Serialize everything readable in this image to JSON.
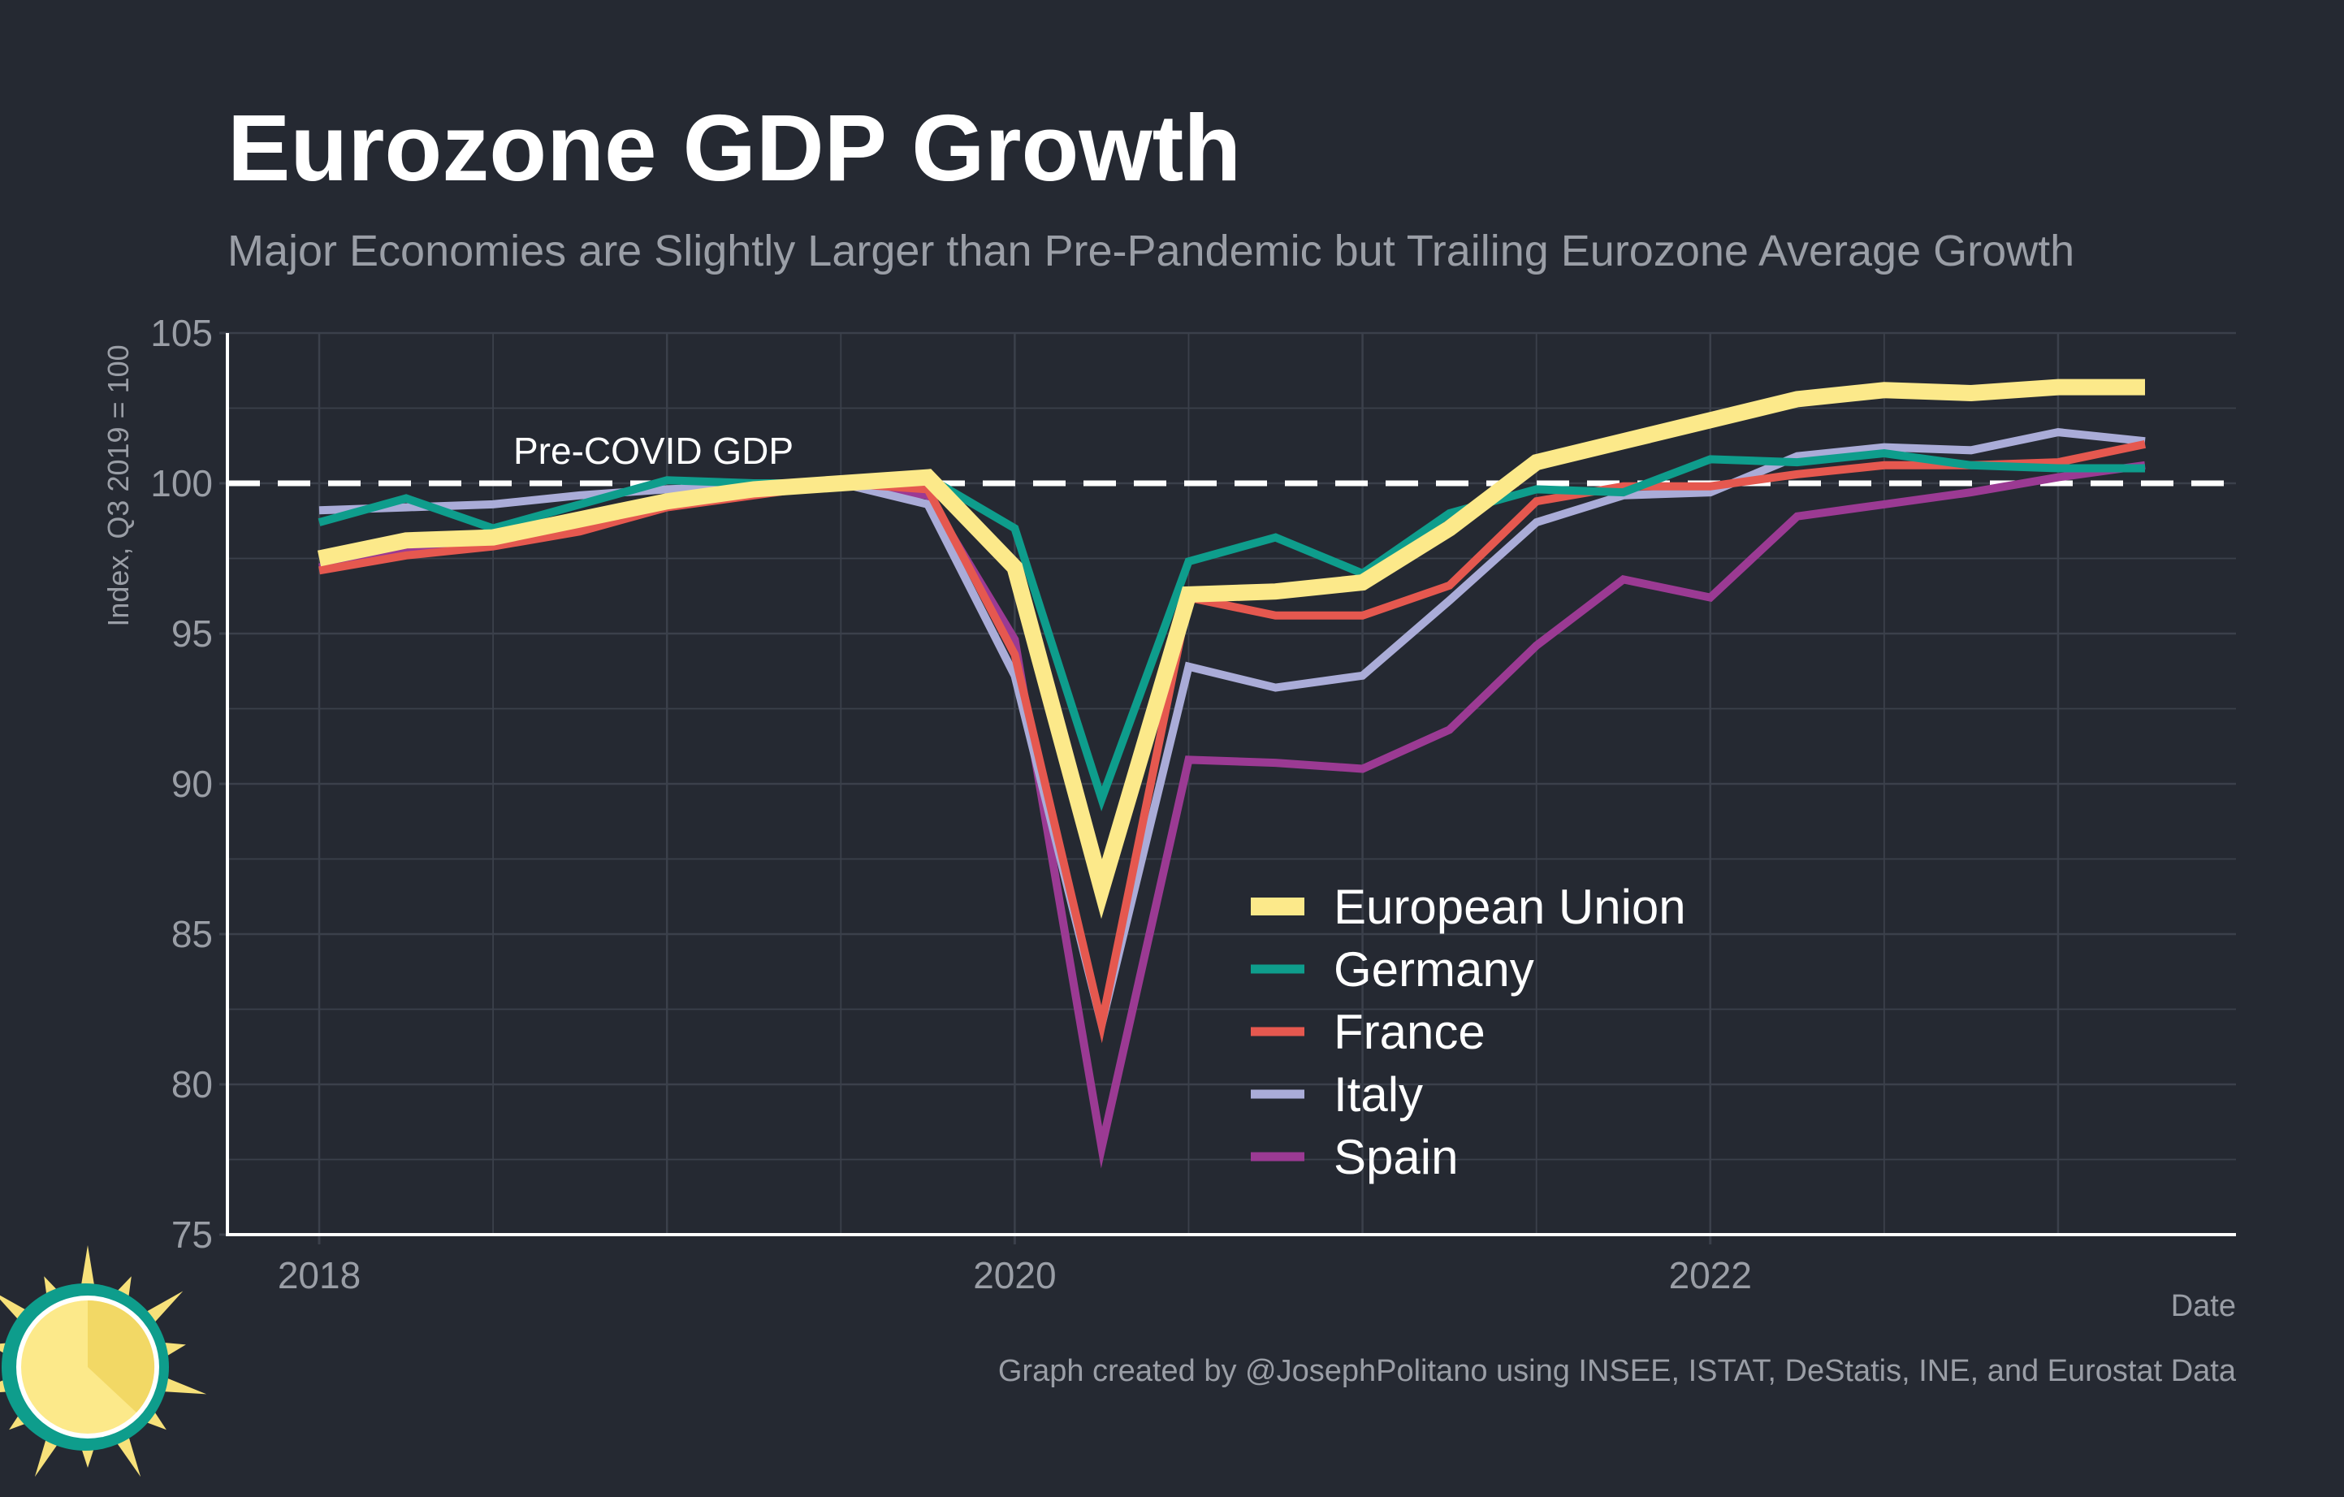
{
  "colors": {
    "background": "#252932",
    "grid": "#3b404b",
    "axis": "#ffffff",
    "tick_text": "#9a9ea6",
    "title": "#ffffff",
    "subtitle": "#9a9ea6",
    "reference": "#ffffff",
    "logo_teal": "#0e9d8c",
    "logo_yellow": "#f7e17a"
  },
  "chart_data": {
    "type": "line",
    "title": "Eurozone GDP Growth",
    "subtitle": "Major Economies are Slightly Larger than Pre-Pandemic but Trailing Eurozone Average Growth",
    "xlabel": "Date",
    "ylabel": "Index, Q3 2019 = 100",
    "caption": "Graph created by @JosephPolitano using INSEE, ISTAT, DeStatis, INE, and Eurostat Data",
    "x": [
      "2018-Q1",
      "2018-Q2",
      "2018-Q3",
      "2018-Q4",
      "2019-Q1",
      "2019-Q2",
      "2019-Q3",
      "2019-Q4",
      "2020-Q1",
      "2020-Q2",
      "2020-Q3",
      "2020-Q4",
      "2021-Q1",
      "2021-Q2",
      "2021-Q3",
      "2021-Q4",
      "2022-Q1",
      "2022-Q2",
      "2022-Q3",
      "2022-Q4",
      "2023-Q1",
      "2023-Q2"
    ],
    "x_ticks": [
      {
        "label": "2018",
        "index": 0
      },
      {
        "label": "2020",
        "index": 8
      },
      {
        "label": "2022",
        "index": 16
      }
    ],
    "ylim": [
      75,
      105
    ],
    "y_ticks": [
      75,
      80,
      85,
      90,
      95,
      100,
      105
    ],
    "grid": true,
    "legend_position": "center-bottom",
    "reference_line": {
      "y": 100,
      "label": "Pre-COVID GDP",
      "style": "dashed"
    },
    "series": [
      {
        "name": "Spain",
        "color": "#9b3a93",
        "values": [
          97.2,
          97.7,
          98.2,
          98.8,
          99.4,
          99.8,
          100.0,
          99.6,
          94.8,
          77.9,
          90.8,
          90.7,
          90.5,
          91.8,
          94.6,
          96.8,
          96.2,
          98.9,
          99.3,
          99.7,
          100.2,
          100.6
        ]
      },
      {
        "name": "Italy",
        "color": "#aaacd8",
        "values": [
          99.1,
          99.2,
          99.3,
          99.6,
          99.8,
          99.9,
          100.0,
          99.3,
          93.6,
          82.0,
          93.9,
          93.2,
          93.6,
          96.1,
          98.7,
          99.6,
          99.7,
          100.9,
          101.2,
          101.1,
          101.7,
          101.4
        ]
      },
      {
        "name": "France",
        "color": "#e5584f",
        "values": [
          97.1,
          97.6,
          97.9,
          98.4,
          99.2,
          99.6,
          100.0,
          99.8,
          94.3,
          82.0,
          96.2,
          95.6,
          95.6,
          96.6,
          99.4,
          99.9,
          99.9,
          100.3,
          100.6,
          100.6,
          100.7,
          101.3
        ]
      },
      {
        "name": "Germany",
        "color": "#0e9d8c",
        "values": [
          98.7,
          99.5,
          98.5,
          99.3,
          100.1,
          100.0,
          100.0,
          100.2,
          98.5,
          89.5,
          97.4,
          98.2,
          97.0,
          99.0,
          99.8,
          99.7,
          100.8,
          100.7,
          101.0,
          100.6,
          100.5,
          100.5
        ]
      },
      {
        "name": "European Union",
        "color": "#fce98a",
        "values": [
          97.5,
          98.1,
          98.2,
          98.8,
          99.4,
          99.8,
          100.0,
          100.2,
          97.2,
          86.5,
          96.3,
          96.4,
          96.7,
          98.5,
          100.7,
          101.4,
          102.1,
          102.8,
          103.1,
          103.0,
          103.2,
          103.2
        ]
      }
    ],
    "legend_order": [
      "European Union",
      "Germany",
      "France",
      "Italy",
      "Spain"
    ]
  }
}
